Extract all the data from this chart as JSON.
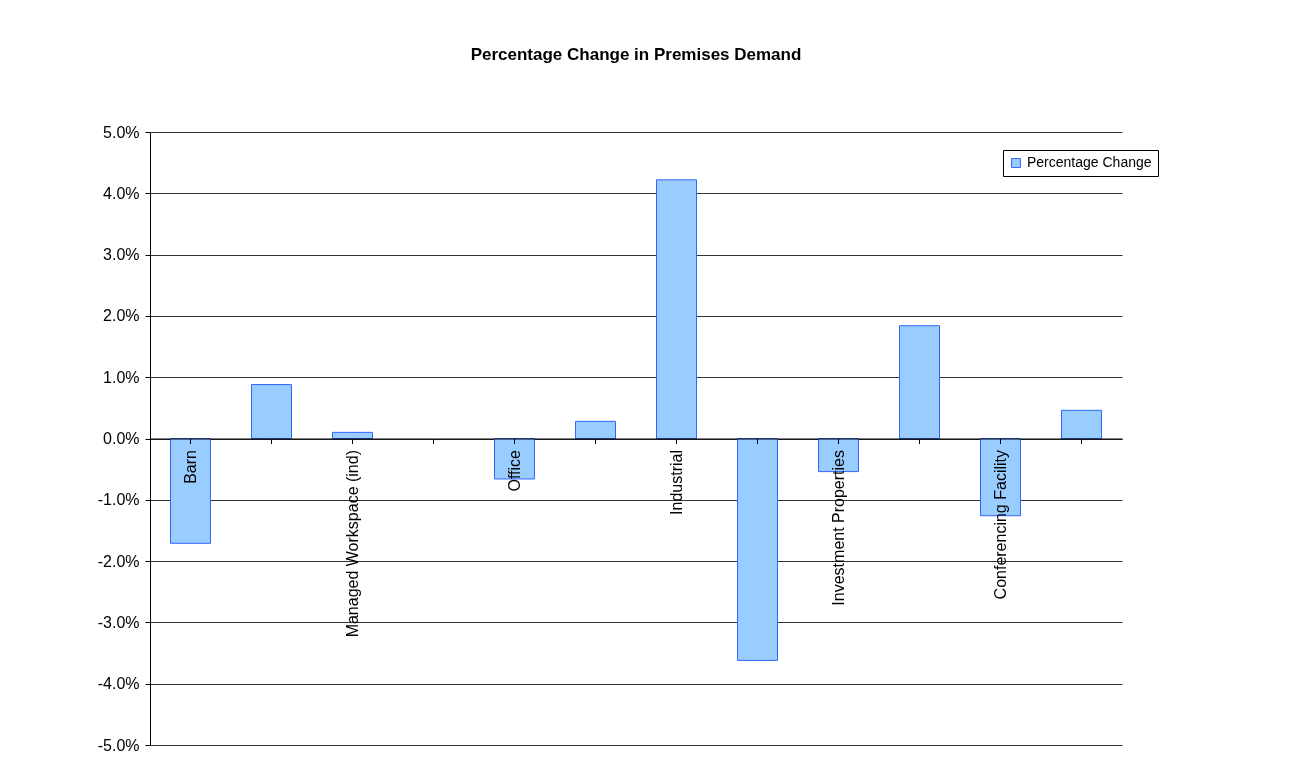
{
  "chart_data": {
    "type": "bar",
    "title": "Percentage Change in Premises Demand",
    "categories": [
      "Barn",
      null,
      "Managed Workspace (ind)",
      null,
      "Office",
      null,
      "Industrial",
      null,
      "Investment Properties",
      null,
      "Conferencing Facility",
      null
    ],
    "series": [
      {
        "name": "Percentage Change",
        "color": "#99ccff",
        "values": [
          -1.71,
          0.88,
          0.1,
          null,
          -0.66,
          0.28,
          4.22,
          -3.62,
          -0.54,
          1.84,
          -1.26,
          0.46
        ]
      }
    ],
    "ylim": [
      -5,
      5
    ],
    "yticks": [
      {
        "value": -5,
        "label": "-5.0%"
      },
      {
        "value": -4,
        "label": "-4.0%"
      },
      {
        "value": -3,
        "label": "-3.0%"
      },
      {
        "value": -2,
        "label": "-2.0%"
      },
      {
        "value": -1,
        "label": "-1.0%"
      },
      {
        "value": 0,
        "label": "0.0%"
      },
      {
        "value": 1,
        "label": "1.0%"
      },
      {
        "value": 2,
        "label": "2.0%"
      },
      {
        "value": 3,
        "label": "3.0%"
      },
      {
        "value": 4,
        "label": "4.0%"
      },
      {
        "value": 5,
        "label": "5.0%"
      }
    ],
    "grid": "y",
    "legend": "top right"
  }
}
